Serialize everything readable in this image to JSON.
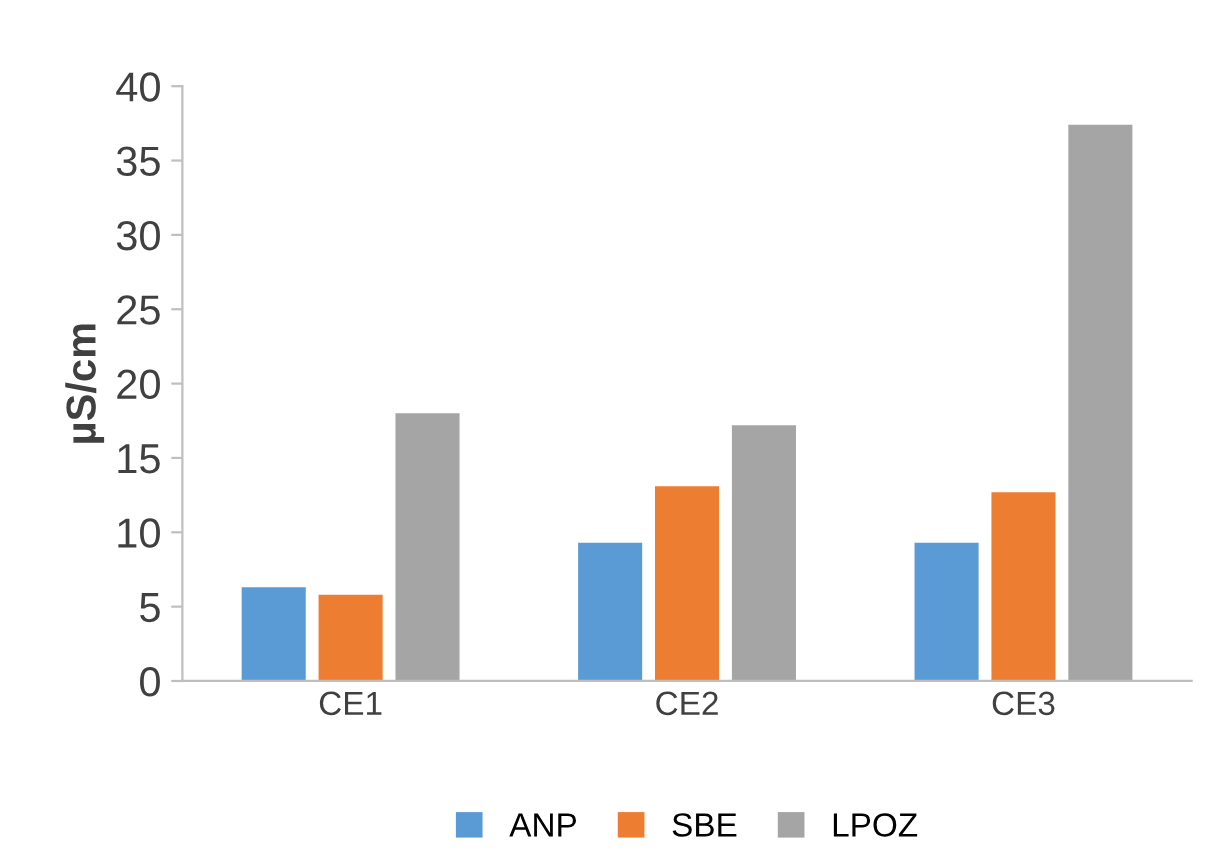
{
  "chart_data": {
    "type": "bar",
    "ylabel": "µS/cm",
    "categories": [
      "CE1",
      "CE2",
      "CE3"
    ],
    "series": [
      {
        "name": "ANP",
        "color": "#5b9bd5",
        "values": [
          6.3,
          9.3,
          9.3
        ]
      },
      {
        "name": "SBE",
        "color": "#ed7d31",
        "values": [
          5.8,
          13.1,
          12.7
        ]
      },
      {
        "name": "LPOZ",
        "color": "#a5a5a5",
        "values": [
          18.0,
          17.2,
          37.4
        ]
      }
    ],
    "ylim": [
      0,
      40
    ],
    "yticks": [
      0,
      5,
      10,
      15,
      20,
      25,
      30,
      35,
      40
    ],
    "legend": "bottom"
  }
}
